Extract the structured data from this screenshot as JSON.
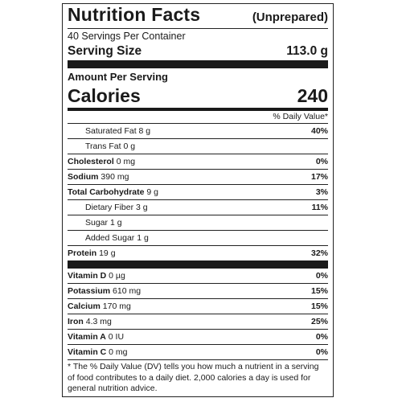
{
  "header": {
    "title": "Nutrition Facts",
    "subtitle": "(Unprepared)"
  },
  "servings_per_container": "40 Servings Per Container",
  "serving_size": {
    "label": "Serving Size",
    "value": "113.0 g"
  },
  "amount_per_serving": "Amount Per Serving",
  "calories": {
    "label": "Calories",
    "value": "240"
  },
  "dv_header": "% Daily Value*",
  "nutrients": [
    {
      "name": "Saturated Fat",
      "amount": "8 g",
      "dv": "40%",
      "bold": false,
      "indent": true
    },
    {
      "name": "Trans Fat",
      "amount": "0 g",
      "dv": "",
      "bold": false,
      "indent": true
    },
    {
      "name": "Cholesterol",
      "amount": "0 mg",
      "dv": "0%",
      "bold": true,
      "indent": false
    },
    {
      "name": "Sodium",
      "amount": "390 mg",
      "dv": "17%",
      "bold": true,
      "indent": false
    },
    {
      "name": "Total Carbohydrate",
      "amount": "9 g",
      "dv": "3%",
      "bold": true,
      "indent": false
    },
    {
      "name": "Dietary Fiber",
      "amount": "3 g",
      "dv": "11%",
      "bold": false,
      "indent": true
    },
    {
      "name": "Sugar",
      "amount": "1 g",
      "dv": "",
      "bold": false,
      "indent": true
    },
    {
      "name": "Added Sugar",
      "amount": "1 g",
      "dv": "",
      "bold": false,
      "indent": true
    },
    {
      "name": "Protein",
      "amount": "19 g",
      "dv": "32%",
      "bold": true,
      "indent": false
    }
  ],
  "vitamins": [
    {
      "name": "Vitamin D",
      "amount": "0 µg",
      "dv": "0%",
      "bold": true
    },
    {
      "name": "Potassium",
      "amount": "610 mg",
      "dv": "15%",
      "bold": true
    },
    {
      "name": "Calcium",
      "amount": "170 mg",
      "dv": "15%",
      "bold": true
    },
    {
      "name": "Iron",
      "amount": "4.3 mg",
      "dv": "25%",
      "bold": true
    },
    {
      "name": "Vitamin A",
      "amount": "0 IU",
      "dv": "0%",
      "bold": true
    },
    {
      "name": "Vitamin C",
      "amount": "0 mg",
      "dv": "0%",
      "bold": true
    }
  ],
  "footnote": "* The % Daily Value (DV) tells you how much a nutrient in a serving of food contributes to a daily diet. 2,000 calories a day is used for general nutrition advice."
}
